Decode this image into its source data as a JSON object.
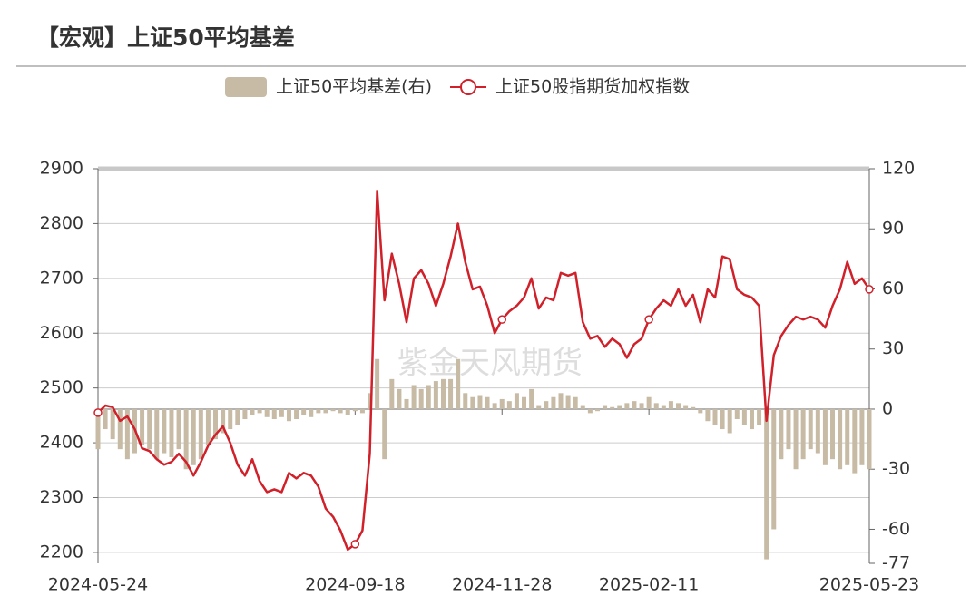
{
  "chart_data": {
    "type": "bar-line",
    "title": "【宏观】上证50平均基差",
    "watermark": "紫金天风期货",
    "categories": [
      "2024-05-24",
      null,
      null,
      null,
      null,
      null,
      null,
      null,
      null,
      null,
      null,
      null,
      null,
      null,
      null,
      null,
      null,
      null,
      null,
      null,
      null,
      null,
      null,
      null,
      null,
      null,
      null,
      null,
      null,
      null,
      null,
      null,
      null,
      null,
      null,
      "2024-09-18",
      null,
      null,
      null,
      null,
      null,
      null,
      null,
      null,
      null,
      null,
      null,
      null,
      null,
      null,
      null,
      null,
      null,
      null,
      null,
      "2024-11-28",
      null,
      null,
      null,
      null,
      null,
      null,
      null,
      null,
      null,
      null,
      null,
      null,
      null,
      null,
      null,
      null,
      null,
      null,
      null,
      "2025-02-11",
      null,
      null,
      null,
      null,
      null,
      null,
      null,
      null,
      null,
      null,
      null,
      null,
      null,
      null,
      null,
      null,
      null,
      null,
      null,
      null,
      null,
      null,
      null,
      null,
      null,
      null,
      null,
      null,
      null,
      "2025-05-23"
    ],
    "series": [
      {
        "name": "上证50平均基差(右)",
        "type": "bar",
        "axis": "y2",
        "color": "#c8bba5",
        "values": [
          -20,
          -10,
          -15,
          -20,
          -25,
          -22,
          -18,
          -20,
          -25,
          -22,
          -24,
          -20,
          -30,
          -28,
          -25,
          -18,
          -15,
          -12,
          -10,
          -8,
          -5,
          -3,
          -2,
          -4,
          -5,
          -4,
          -6,
          -5,
          -3,
          -4,
          -2,
          -2,
          -1,
          -2,
          -3,
          -1,
          -2,
          8,
          25,
          -25,
          15,
          10,
          5,
          12,
          10,
          12,
          14,
          15,
          15,
          25,
          8,
          6,
          7,
          6,
          3,
          5,
          4,
          8,
          6,
          10,
          2,
          4,
          6,
          8,
          7,
          6,
          2,
          -2,
          -1,
          2,
          1,
          2,
          3,
          4,
          3,
          6,
          3,
          2,
          4,
          3,
          2,
          1,
          -2,
          -6,
          -8,
          -10,
          -12,
          -5,
          -8,
          -10,
          -8,
          -75,
          -60,
          -25,
          -20,
          -30,
          -25,
          -20,
          -22,
          -28,
          -25,
          -30,
          -28,
          -32,
          -28,
          -30
        ]
      },
      {
        "name": "上证50股指期货加权指数",
        "type": "line",
        "color": "#d0202a",
        "values": [
          2455,
          2468,
          2465,
          2440,
          2448,
          2425,
          2390,
          2385,
          2370,
          2360,
          2365,
          2380,
          2365,
          2340,
          2365,
          2395,
          2415,
          2430,
          2400,
          2360,
          2340,
          2370,
          2330,
          2310,
          2315,
          2310,
          2345,
          2335,
          2345,
          2340,
          2320,
          2280,
          2265,
          2240,
          2205,
          2215,
          2240,
          2380,
          2860,
          2660,
          2745,
          2690,
          2620,
          2700,
          2715,
          2690,
          2650,
          2690,
          2740,
          2800,
          2730,
          2680,
          2685,
          2650,
          2600,
          2625,
          2640,
          2650,
          2665,
          2700,
          2645,
          2665,
          2660,
          2710,
          2705,
          2710,
          2620,
          2590,
          2595,
          2575,
          2590,
          2580,
          2555,
          2580,
          2590,
          2625,
          2645,
          2660,
          2650,
          2680,
          2650,
          2670,
          2620,
          2680,
          2665,
          2740,
          2735,
          2680,
          2670,
          2665,
          2650,
          2440,
          2560,
          2595,
          2615,
          2630,
          2625,
          2630,
          2625,
          2610,
          2650,
          2680,
          2730,
          2690,
          2700,
          2680
        ]
      }
    ],
    "ylim": [
      2180,
      2900
    ],
    "yticks": [
      2200,
      2300,
      2400,
      2500,
      2600,
      2700,
      2800,
      2900
    ],
    "y2lim": [
      -77,
      120
    ],
    "y2ticks": [
      -77,
      -60,
      -30,
      0,
      30,
      60,
      90,
      120
    ],
    "grid": true
  }
}
